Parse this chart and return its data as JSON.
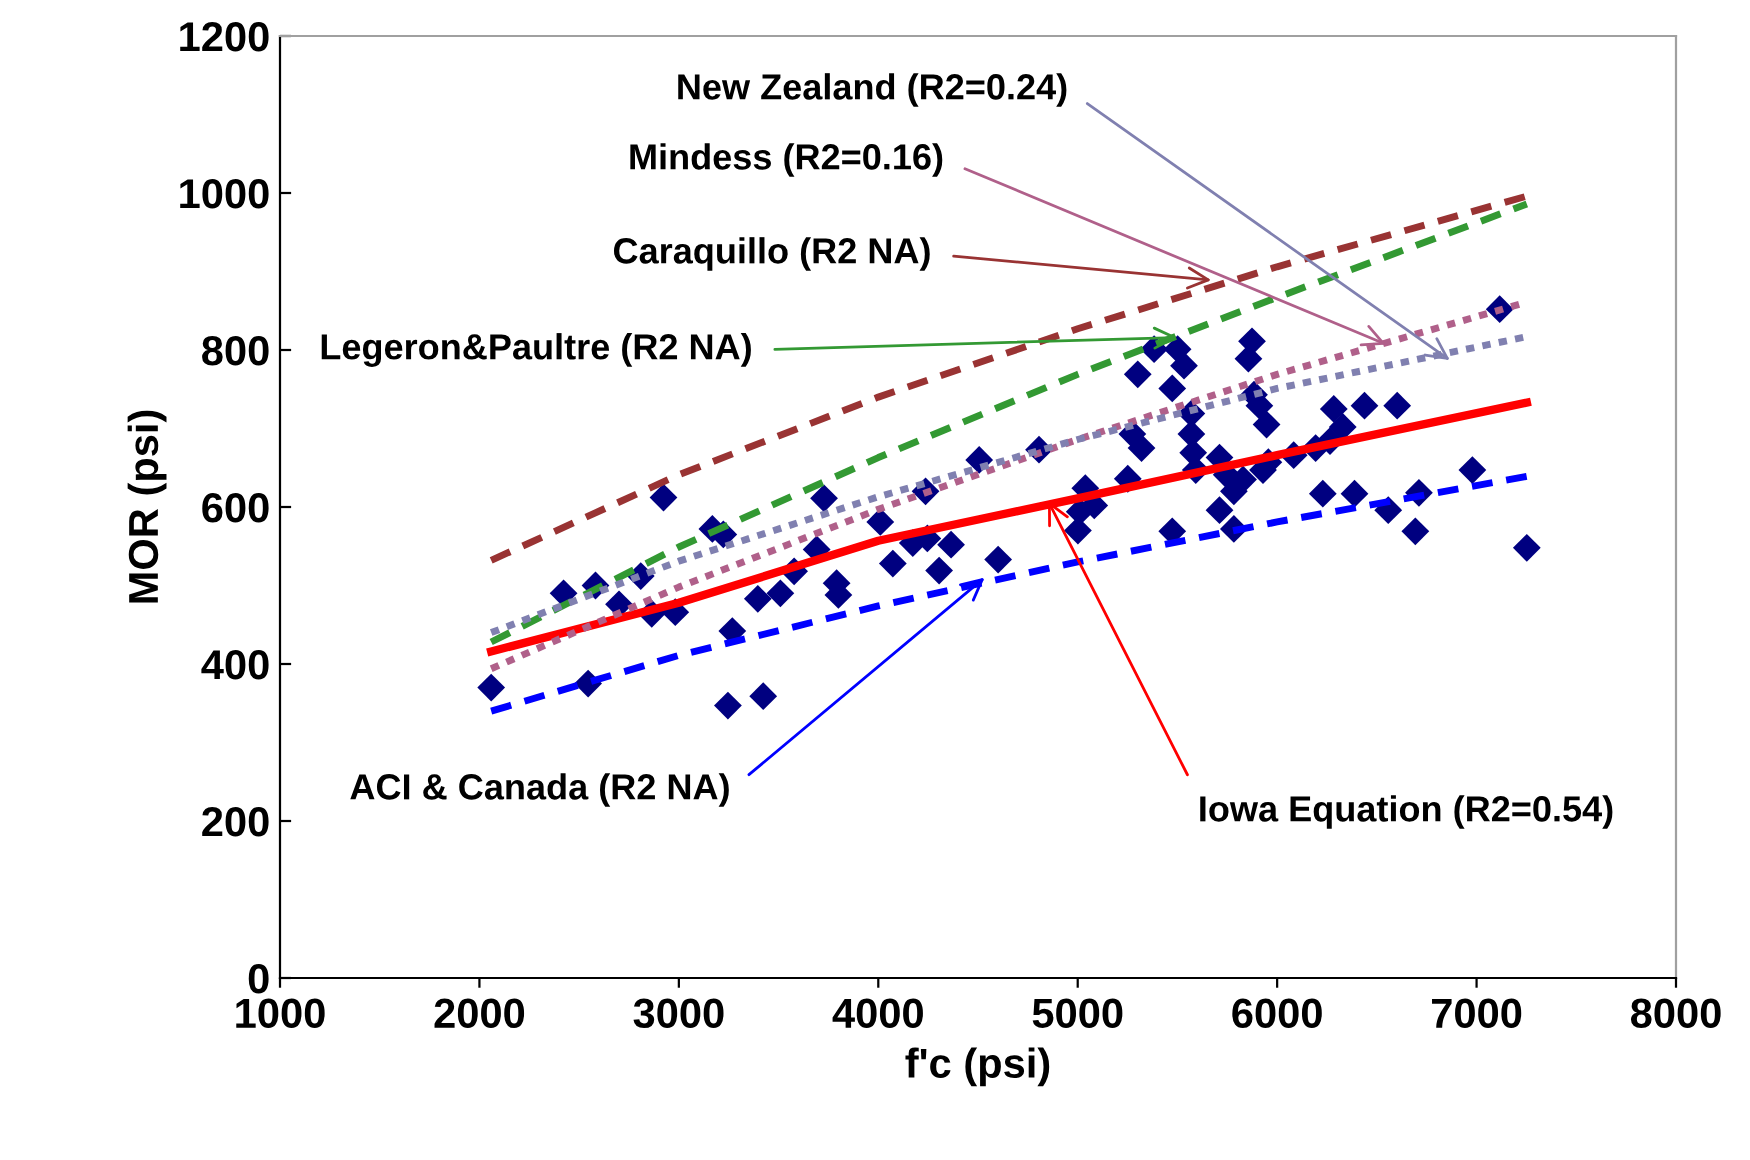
{
  "chart_data": {
    "type": "scatter",
    "xlabel": "f'c (psi)",
    "ylabel": "MOR (psi)",
    "xlim": [
      1000,
      8000
    ],
    "xticks": [
      1000,
      2000,
      3000,
      4000,
      5000,
      6000,
      7000,
      8000
    ],
    "ylim": [
      0,
      1200
    ],
    "yticks": [
      0,
      200,
      400,
      600,
      800,
      1000,
      1200
    ],
    "grid": false,
    "legend": false,
    "series": [
      {
        "color": "#000080",
        "marker": "diamond",
        "x": [
          2059,
          2422,
          2545,
          2582,
          2700,
          2809,
          2864,
          2923,
          2982,
          3168,
          3223,
          3246,
          3268,
          3396,
          3423,
          3509,
          3578,
          3691,
          3728,
          3791,
          3800,
          4010,
          4073,
          4173,
          4237,
          4246,
          4305,
          4365,
          4506,
          4601,
          4806,
          5001,
          5010,
          5038,
          5083,
          5251,
          5274,
          5301,
          5320,
          5383,
          5474,
          5474,
          5501,
          5533,
          5570,
          5570,
          5579,
          5592,
          5711,
          5711,
          5747,
          5783,
          5783,
          5829,
          5856,
          5874,
          5884,
          5911,
          5929,
          5947,
          5956,
          6083,
          6193,
          6229,
          6265,
          6284,
          6329,
          6388,
          6438,
          6557,
          6602,
          6693,
          6711,
          6979,
          7116,
          7252
        ],
        "values": [
          370,
          490,
          375,
          500,
          476,
          512,
          464,
          612,
          466,
          572,
          565,
          347,
          442,
          483,
          359,
          490,
          518,
          546,
          611,
          503,
          488,
          581,
          528,
          554,
          620,
          560,
          519,
          552,
          660,
          533,
          673,
          570,
          594,
          624,
          602,
          636,
          693,
          769,
          675,
          801,
          569,
          751,
          801,
          780,
          719,
          693,
          669,
          647,
          663,
          596,
          641,
          620,
          572,
          635,
          789,
          811,
          743,
          729,
          647,
          705,
          657,
          666,
          675,
          617,
          684,
          725,
          702,
          617,
          729,
          596,
          729,
          569,
          618,
          647,
          852,
          548
        ]
      },
      {
        "type": "line",
        "color": "#ff0000",
        "line_style": "solid",
        "marker": "none",
        "x": [
          2059,
          3000,
          4000,
          5000,
          6000,
          7252
        ],
        "values": [
          416,
          478,
          557,
          611,
          666,
          733
        ]
      },
      {
        "type": "line",
        "color": "#0000ff",
        "line_style": "dashed",
        "marker": "none",
        "x": [
          2059,
          3000,
          4000,
          5000,
          6000,
          7252
        ],
        "values": [
          340,
          411,
          474,
          530,
          581,
          639
        ]
      },
      {
        "type": "line",
        "color": "#993333",
        "line_style": "dashed",
        "marker": "none",
        "x": [
          2059,
          3000,
          4000,
          5000,
          6000,
          7252
        ],
        "values": [
          532,
          641,
          740,
          827,
          906,
          996
        ]
      },
      {
        "type": "line",
        "color": "#339933",
        "line_style": "dashed",
        "marker": "none",
        "x": [
          2059,
          3000,
          4000,
          5000,
          6000,
          7252
        ],
        "values": [
          428,
          549,
          663,
          769,
          867,
          986
        ]
      },
      {
        "type": "line",
        "color": "#b0608a",
        "line_style": "dotted",
        "marker": "none",
        "x": [
          2059,
          3000,
          4000,
          5000,
          6000,
          7252
        ],
        "values": [
          394,
          498,
          597,
          686,
          769,
          861
        ]
      },
      {
        "type": "line",
        "color": "#8080b0",
        "line_style": "dotted",
        "marker": "none",
        "x": [
          2059,
          3000,
          4000,
          5000,
          6000,
          7252
        ],
        "values": [
          440,
          531,
          613,
          686,
          751,
          817
        ]
      }
    ],
    "annotations": [
      {
        "text": "Iowa Equation (R2=0.54)",
        "x": 4851,
        "y": 608
      },
      {
        "text": "ACI & Canada (R2 NA)",
        "x": 4533,
        "y": 510
      },
      {
        "text": "Caraquillo (R2 NA)",
        "x": 5670,
        "y": 889
      },
      {
        "text": "Legeron&Paultre (R2 NA)",
        "x": 5501,
        "y": 816
      },
      {
        "text": "Mindess (R2=0.16)",
        "x": 6547,
        "y": 807
      },
      {
        "text": "New Zealand (R2=0.24)",
        "x": 6866,
        "y": 787
      }
    ]
  }
}
